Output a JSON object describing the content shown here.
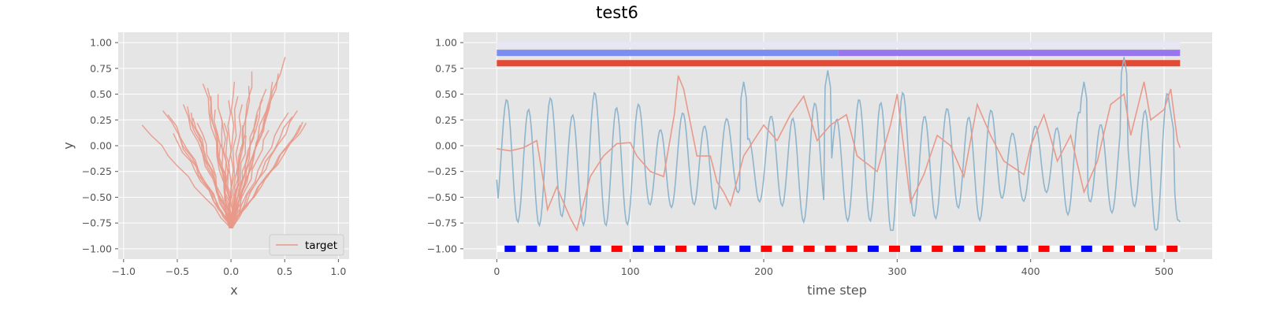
{
  "figure": {
    "suptitle": "test6"
  },
  "chart_data": [
    {
      "type": "line",
      "name": "left-xy-plot",
      "xlabel": "x",
      "ylabel": "y",
      "xlim": [
        -1.05,
        1.1
      ],
      "ylim": [
        -1.1,
        1.1
      ],
      "xticks": [
        -1.0,
        -0.5,
        0.0,
        0.5,
        1.0
      ],
      "xtick_labels": [
        "−1.0",
        "−0.5",
        "0.0",
        "0.5",
        "1.0"
      ],
      "yticks": [
        -1.0,
        -0.75,
        -0.5,
        -0.25,
        0.0,
        0.25,
        0.5,
        0.75,
        1.0
      ],
      "ytick_labels": [
        "−1.00",
        "−0.75",
        "−0.50",
        "−0.25",
        "0.00",
        "0.25",
        "0.50",
        "0.75",
        "1.00"
      ],
      "grid": true,
      "legend": {
        "location": "lower right",
        "entries": [
          "target"
        ]
      },
      "series": [
        {
          "name": "target",
          "color": "#e8998a",
          "rays": [
            [
              -0.82,
              0.2
            ],
            [
              -0.62,
              0.34
            ],
            [
              -0.58,
              0.3
            ],
            [
              -0.45,
              0.4
            ],
            [
              -0.42,
              0.38
            ],
            [
              -0.38,
              0.32
            ],
            [
              -0.35,
              0.27
            ],
            [
              -0.3,
              0.22
            ],
            [
              -0.25,
              0.6
            ],
            [
              -0.22,
              0.56
            ],
            [
              -0.2,
              0.48
            ],
            [
              -0.16,
              0.35
            ],
            [
              -0.12,
              0.5
            ],
            [
              -0.08,
              0.28
            ],
            [
              -0.05,
              0.22
            ],
            [
              -0.02,
              0.44
            ],
            [
              0.02,
              0.62
            ],
            [
              0.05,
              0.48
            ],
            [
              0.1,
              0.4
            ],
            [
              0.12,
              0.2
            ],
            [
              0.18,
              0.58
            ],
            [
              0.2,
              0.72
            ],
            [
              0.24,
              0.3
            ],
            [
              0.28,
              0.45
            ],
            [
              0.32,
              0.55
            ],
            [
              0.36,
              0.38
            ],
            [
              0.4,
              0.62
            ],
            [
              0.45,
              0.7
            ],
            [
              0.5,
              0.86
            ],
            [
              0.52,
              0.32
            ],
            [
              0.56,
              0.28
            ],
            [
              0.62,
              0.34
            ],
            [
              0.66,
              0.2
            ],
            [
              0.68,
              0.23
            ],
            [
              0.7,
              0.22
            ],
            [
              -0.55,
              0.12
            ],
            [
              -0.48,
              0.05
            ],
            [
              0.35,
              0.15
            ],
            [
              0.15,
              0.1
            ],
            [
              -0.1,
              0.05
            ]
          ],
          "origin": [
            0.0,
            -0.8
          ]
        }
      ]
    },
    {
      "type": "line",
      "name": "right-timeseries",
      "xlabel": "time step",
      "ylabel": "",
      "xlim": [
        -25,
        536
      ],
      "ylim": [
        -1.1,
        1.1
      ],
      "xticks": [
        0,
        100,
        200,
        300,
        400,
        500
      ],
      "xtick_labels": [
        "0",
        "100",
        "200",
        "300",
        "400",
        "500"
      ],
      "yticks": [
        -1.0,
        -0.75,
        -0.5,
        -0.25,
        0.0,
        0.25,
        0.5,
        0.75,
        1.0
      ],
      "ytick_labels": [
        "−1.00",
        "−0.75",
        "−0.50",
        "−0.25",
        "0.00",
        "0.25",
        "0.50",
        "0.75",
        "1.00"
      ],
      "grid": true,
      "series_length": 512,
      "top_bands": [
        {
          "y": 0.98,
          "segments": [
            {
              "x0": 0,
              "x1": 512,
              "color": "#e6e6f5"
            }
          ]
        },
        {
          "y": 0.9,
          "segments": [
            {
              "x0": 0,
              "x1": 256,
              "color": "#7b8df0"
            },
            {
              "x0": 256,
              "x1": 512,
              "color": "#9877ee"
            }
          ]
        },
        {
          "y": 0.8,
          "segments": [
            {
              "x0": 0,
              "x1": 512,
              "color": "#e24a33"
            }
          ]
        }
      ],
      "series": [
        {
          "color": "#8db5cd",
          "frequency_period": 16.5,
          "amplitude_range": [
            -0.82,
            0.86
          ],
          "notable_peaks": [
            {
              "x": 470,
              "y": 0.86
            },
            {
              "x": 248,
              "y": 0.73
            },
            {
              "x": 90,
              "y": 0.33
            },
            {
              "x": 185,
              "y": 0.62
            },
            {
              "x": 440,
              "y": 0.62
            },
            {
              "x": 505,
              "y": 0.32
            }
          ],
          "end_value": -0.74,
          "start_value": -0.33
        },
        {
          "color": "#e8998a",
          "key_points": [
            [
              0,
              -0.03
            ],
            [
              10,
              -0.05
            ],
            [
              20,
              -0.02
            ],
            [
              30,
              0.05
            ],
            [
              35,
              -0.35
            ],
            [
              38,
              -0.62
            ],
            [
              45,
              -0.4
            ],
            [
              55,
              -0.7
            ],
            [
              60,
              -0.82
            ],
            [
              70,
              -0.3
            ],
            [
              80,
              -0.1
            ],
            [
              90,
              0.02
            ],
            [
              100,
              0.03
            ],
            [
              105,
              -0.1
            ],
            [
              115,
              -0.25
            ],
            [
              125,
              -0.3
            ],
            [
              133,
              0.3
            ],
            [
              136,
              0.68
            ],
            [
              140,
              0.55
            ],
            [
              150,
              -0.1
            ],
            [
              160,
              -0.1
            ],
            [
              165,
              -0.35
            ],
            [
              170,
              -0.45
            ],
            [
              175,
              -0.58
            ],
            [
              185,
              -0.1
            ],
            [
              200,
              0.2
            ],
            [
              210,
              0.05
            ],
            [
              220,
              0.3
            ],
            [
              230,
              0.48
            ],
            [
              240,
              0.05
            ],
            [
              250,
              0.2
            ],
            [
              262,
              0.3
            ],
            [
              270,
              -0.1
            ],
            [
              285,
              -0.25
            ],
            [
              295,
              0.2
            ],
            [
              300,
              0.5
            ],
            [
              310,
              -0.55
            ],
            [
              320,
              -0.28
            ],
            [
              330,
              0.1
            ],
            [
              340,
              0.0
            ],
            [
              350,
              -0.3
            ],
            [
              360,
              0.4
            ],
            [
              370,
              0.1
            ],
            [
              380,
              -0.15
            ],
            [
              395,
              -0.28
            ],
            [
              400,
              0.0
            ],
            [
              410,
              0.3
            ],
            [
              420,
              -0.15
            ],
            [
              430,
              0.1
            ],
            [
              440,
              -0.45
            ],
            [
              450,
              -0.15
            ],
            [
              460,
              0.4
            ],
            [
              470,
              0.5
            ],
            [
              475,
              0.1
            ],
            [
              485,
              0.62
            ],
            [
              490,
              0.25
            ],
            [
              500,
              0.35
            ],
            [
              505,
              0.55
            ],
            [
              510,
              0.05
            ],
            [
              512,
              -0.02
            ]
          ]
        }
      ],
      "bottom_markers": {
        "y": -1.0,
        "x_positions": [
          10,
          26,
          42,
          58,
          74,
          90,
          106,
          122,
          138,
          154,
          170,
          186,
          202,
          218,
          234,
          250,
          266,
          282,
          298,
          314,
          330,
          346,
          362,
          378,
          394,
          410,
          426,
          442,
          458,
          474,
          490,
          506
        ],
        "colors": [
          "blue",
          "blue",
          "blue",
          "blue",
          "blue",
          "red",
          "blue",
          "blue",
          "red",
          "blue",
          "blue",
          "blue",
          "red",
          "red",
          "red",
          "red",
          "red",
          "blue",
          "red",
          "blue",
          "red",
          "blue",
          "red",
          "blue",
          "blue",
          "red",
          "blue",
          "blue",
          "red",
          "red",
          "red",
          "red"
        ],
        "color_map": {
          "blue": "#0000ff",
          "red": "#ff0000"
        }
      }
    }
  ]
}
